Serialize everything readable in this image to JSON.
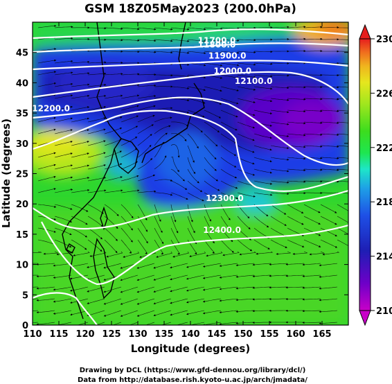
{
  "chart_data": {
    "type": "heatmap",
    "title": "GSM 18Z05May2023 (200.0hPa)",
    "xlabel": "Longitude (degrees)",
    "ylabel": "Latitude  (degrees)",
    "xlim": [
      110,
      170
    ],
    "ylim": [
      0,
      50
    ],
    "x_ticks": [
      110,
      115,
      120,
      125,
      130,
      135,
      140,
      145,
      150,
      155,
      160,
      165
    ],
    "y_ticks": [
      0,
      5,
      10,
      15,
      20,
      25,
      30,
      35,
      40,
      45
    ],
    "colorbar": {
      "min": 210,
      "max": 230,
      "tick_labels": [
        "230",
        "226",
        "222",
        "218",
        "214",
        "210"
      ],
      "tick_values": [
        230,
        226,
        222,
        218,
        214,
        210
      ],
      "colors": [
        "#c800c8",
        "#6e00c8",
        "#1e1eb4",
        "#1e50e6",
        "#1ea0e6",
        "#1ee6c8",
        "#1ee650",
        "#3cdc1e",
        "#a0e61e",
        "#e6e61e",
        "#f0b41e",
        "#f06e1e",
        "#e61e1e"
      ]
    },
    "contours": [
      {
        "label": "11700.0",
        "level": 11700,
        "lon": 145,
        "lat": 46.5
      },
      {
        "label": "11800.0",
        "level": 11800,
        "lon": 145,
        "lat": 45.8
      },
      {
        "label": "11900.0",
        "level": 11900,
        "lon": 147,
        "lat": 44.0
      },
      {
        "label": "12000.0",
        "level": 12000,
        "lon": 148,
        "lat": 41.5
      },
      {
        "label": "12100.0",
        "level": 12100,
        "lon": 152,
        "lat": 39.8
      },
      {
        "label": "12200.0",
        "level": 12200,
        "lon": 113.5,
        "lat": 35.3
      },
      {
        "label": "12300.0",
        "level": 12300,
        "lon": 146.5,
        "lat": 20.5
      },
      {
        "label": "12400.0",
        "level": 12400,
        "lon": 146.0,
        "lat": 15.2
      }
    ],
    "features": [
      {
        "kind": "cyclonic circulation",
        "lon": 137,
        "lat": 31.5
      },
      {
        "kind": "cold temperature minimum",
        "lon": 162,
        "lat": 39
      }
    ]
  },
  "footer": {
    "line1": "Drawing by DCL (https://www.gfd-dennou.org/library/dcl/)",
    "line2": "Data from http://database.rish.kyoto-u.ac.jp/arch/jmadata/"
  }
}
